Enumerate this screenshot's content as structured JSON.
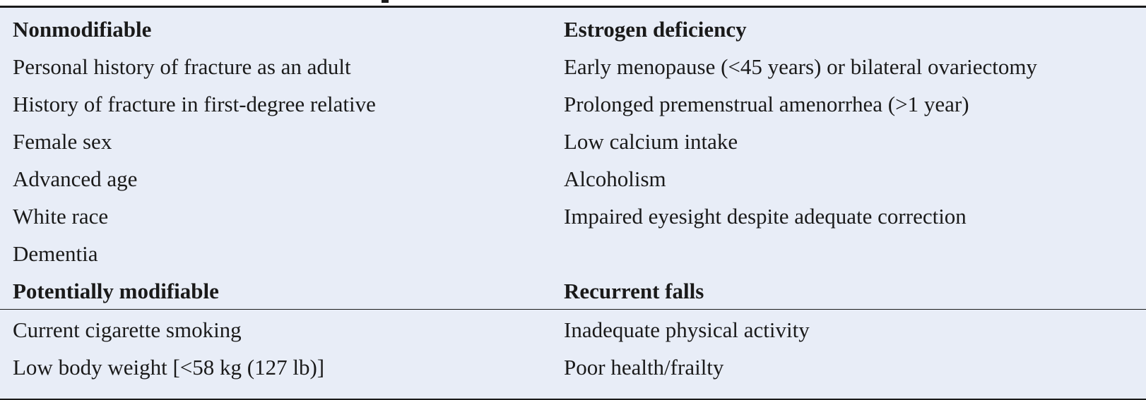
{
  "table": {
    "rows": [
      {
        "left": "Nonmodifiable",
        "right": "Estrogen deficiency",
        "header": true
      },
      {
        "left": "Personal history of fracture as an adult",
        "right": "Early menopause (<45 years) or bilateral ovariectomy"
      },
      {
        "left": "History of fracture in first-degree relative",
        "right": "Prolonged premenstrual amenorrhea (>1 year)"
      },
      {
        "left": "Female sex",
        "right": "Low calcium intake"
      },
      {
        "left": "Advanced age",
        "right": "Alcoholism"
      },
      {
        "left": "White race",
        "right": "Impaired eyesight despite adequate correction"
      },
      {
        "left": "Dementia",
        "right": ""
      },
      {
        "left": "Potentially modifiable",
        "right": "Recurrent falls",
        "header": true
      },
      {
        "left": "Current cigarette smoking",
        "right": "Inadequate physical activity"
      },
      {
        "left": "Low body weight [<58 kg (127 lb)]",
        "right": "Poor health/frailty"
      }
    ]
  }
}
